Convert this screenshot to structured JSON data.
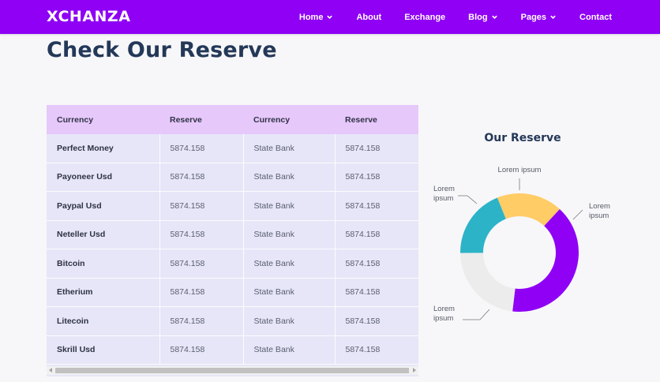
{
  "brand": "XCHANZA",
  "nav": [
    {
      "label": "Home",
      "dropdown": true,
      "icon": "chevron-down-icon"
    },
    {
      "label": "About",
      "dropdown": false
    },
    {
      "label": "Exchange",
      "dropdown": false
    },
    {
      "label": "Blog",
      "dropdown": true,
      "icon": "chevron-down-icon"
    },
    {
      "label": "Pages",
      "dropdown": true,
      "icon": "chevron-down-icon"
    },
    {
      "label": "Contact",
      "dropdown": false
    }
  ],
  "page_title": "Check Our Reserve",
  "reserve_table": {
    "headers": [
      "Currency",
      "Reserve",
      "Currency",
      "Reserve"
    ],
    "rows": [
      [
        "Perfect Money",
        "5874.158",
        "State Bank",
        "5874.158"
      ],
      [
        "Payoneer Usd",
        "5874.158",
        "State Bank",
        "5874.158"
      ],
      [
        "Paypal Usd",
        "5874.158",
        "State Bank",
        "5874.158"
      ],
      [
        "Neteller Usd",
        "5874.158",
        "State Bank",
        "5874.158"
      ],
      [
        "Bitcoin",
        "5874.158",
        "State Bank",
        "5874.158"
      ],
      [
        "Etherium",
        "5874.158",
        "State Bank",
        "5874.158"
      ],
      [
        "Litecoin",
        "5874.158",
        "State Bank",
        "5874.158"
      ],
      [
        "Skrill Usd",
        "5874.158",
        "State Bank",
        "5874.158"
      ]
    ]
  },
  "colors": {
    "nav_bg": "#8f00f5",
    "title": "#243858",
    "table_header": "#e7c8fb",
    "table_body": "#e6e6f8",
    "slice_yellow": "#ffcc66",
    "slice_purple": "#8f00f5",
    "slice_gray": "#ececec",
    "slice_teal": "#2cb3c8"
  },
  "chart_data": {
    "type": "pie",
    "title": "Our Reserve",
    "donut": true,
    "slices": [
      {
        "label": "Lorem ipsum",
        "value": 18,
        "color": "#ffcc66"
      },
      {
        "label": "Lorem ipsum",
        "value": 40,
        "color": "#8f00f5"
      },
      {
        "label": "Lorem ipsum",
        "value": 23,
        "color": "#ececec"
      },
      {
        "label": "Lorem ipsum",
        "value": 19,
        "color": "#2cb3c8"
      }
    ]
  }
}
